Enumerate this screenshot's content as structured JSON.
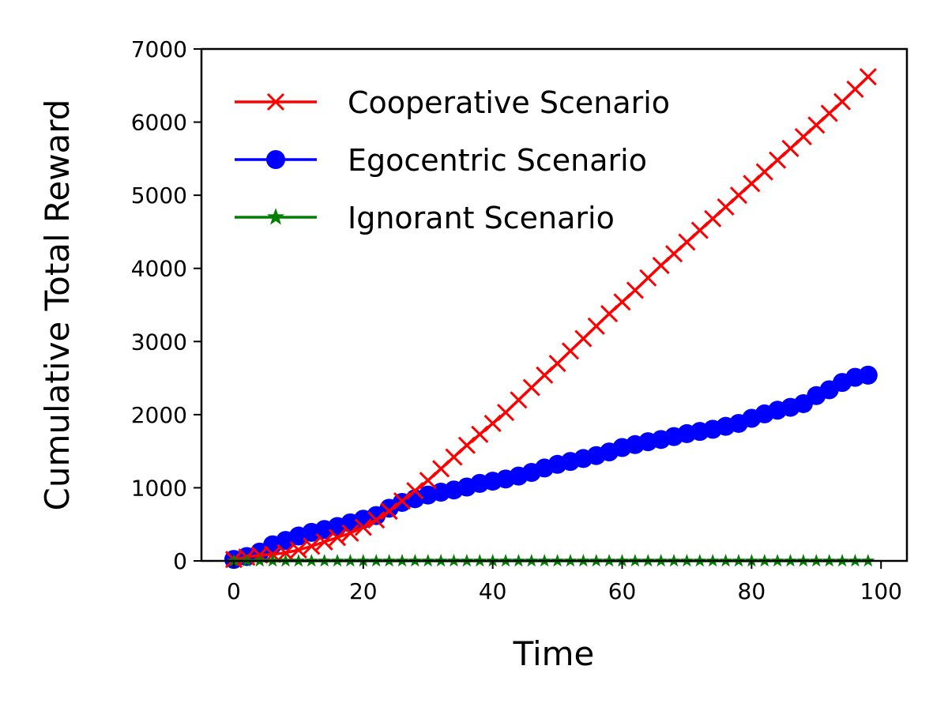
{
  "chart_data": {
    "type": "line",
    "xlabel": "Time",
    "ylabel": "Cumulative Total Reward",
    "xlim": [
      -5,
      104
    ],
    "ylim": [
      0,
      7000
    ],
    "xticks": [
      "0",
      "20",
      "40",
      "60",
      "80",
      "100"
    ],
    "yticks": [
      "0",
      "1000",
      "2000",
      "3000",
      "4000",
      "5000",
      "6000",
      "7000"
    ],
    "grid": false,
    "legend_position": "top-left",
    "series": [
      {
        "name": "Cooperative Scenario",
        "color": "#ff0000",
        "marker": "x",
        "x": [
          0,
          2,
          4,
          6,
          8,
          10,
          12,
          14,
          16,
          18,
          20,
          22,
          24,
          26,
          28,
          30,
          32,
          34,
          36,
          38,
          40,
          42,
          44,
          46,
          48,
          50,
          52,
          54,
          56,
          58,
          60,
          62,
          64,
          66,
          68,
          70,
          72,
          74,
          76,
          78,
          80,
          82,
          84,
          86,
          88,
          90,
          92,
          94,
          96,
          98
        ],
        "values": [
          20,
          50,
          80,
          90,
          110,
          150,
          200,
          260,
          320,
          380,
          460,
          560,
          680,
          820,
          960,
          1100,
          1260,
          1420,
          1580,
          1730,
          1880,
          2030,
          2200,
          2370,
          2540,
          2700,
          2870,
          3040,
          3210,
          3380,
          3540,
          3700,
          3870,
          4040,
          4200,
          4360,
          4520,
          4680,
          4840,
          5000,
          5160,
          5320,
          5480,
          5640,
          5800,
          5960,
          6120,
          6280,
          6450,
          6620
        ]
      },
      {
        "name": "Egocentric Scenario",
        "color": "#0000ff",
        "marker": "o",
        "x": [
          0,
          2,
          4,
          6,
          8,
          10,
          12,
          14,
          16,
          18,
          20,
          22,
          24,
          26,
          28,
          30,
          32,
          34,
          36,
          38,
          40,
          42,
          44,
          46,
          48,
          50,
          52,
          54,
          56,
          58,
          60,
          62,
          64,
          66,
          68,
          70,
          72,
          74,
          76,
          78,
          80,
          82,
          84,
          86,
          88,
          90,
          92,
          94,
          96,
          98
        ],
        "values": [
          20,
          60,
          120,
          220,
          280,
          340,
          390,
          430,
          470,
          520,
          570,
          620,
          720,
          800,
          850,
          900,
          940,
          970,
          1010,
          1060,
          1090,
          1120,
          1160,
          1210,
          1270,
          1320,
          1360,
          1400,
          1440,
          1490,
          1550,
          1590,
          1630,
          1660,
          1700,
          1740,
          1770,
          1800,
          1840,
          1880,
          1950,
          2010,
          2060,
          2100,
          2150,
          2260,
          2340,
          2440,
          2510,
          2540
        ]
      },
      {
        "name": "Ignorant Scenario",
        "color": "#008000",
        "marker": "*",
        "x": [
          0,
          2,
          4,
          6,
          8,
          10,
          12,
          14,
          16,
          18,
          20,
          22,
          24,
          26,
          28,
          30,
          32,
          34,
          36,
          38,
          40,
          42,
          44,
          46,
          48,
          50,
          52,
          54,
          56,
          58,
          60,
          62,
          64,
          66,
          68,
          70,
          72,
          74,
          76,
          78,
          80,
          82,
          84,
          86,
          88,
          90,
          92,
          94,
          96,
          98
        ],
        "values": [
          0,
          0,
          0,
          0,
          0,
          0,
          0,
          0,
          0,
          0,
          0,
          0,
          0,
          0,
          0,
          0,
          0,
          0,
          0,
          0,
          0,
          0,
          0,
          0,
          0,
          0,
          0,
          0,
          0,
          0,
          0,
          0,
          0,
          0,
          0,
          0,
          0,
          0,
          0,
          0,
          0,
          0,
          0,
          0,
          0,
          0,
          0,
          0,
          0,
          0
        ]
      }
    ]
  }
}
